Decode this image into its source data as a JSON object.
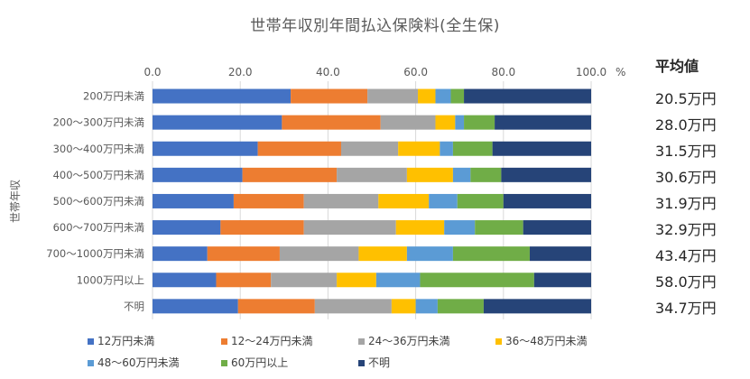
{
  "chart_data": {
    "type": "bar",
    "orientation": "horizontal",
    "stacked": true,
    "title": "世帯年収別年間払込保険料(全生保)",
    "ylabel": "世帯年収",
    "xlim": [
      0,
      100
    ],
    "x_ticks": [
      "0.0",
      "20.0",
      "40.0",
      "60.0",
      "80.0",
      "100.0"
    ],
    "x_unit": "%",
    "legend_position": "bottom",
    "grid": true,
    "categories": [
      "200万円未満",
      "200～300万円未満",
      "300～400万円未満",
      "400～500万円未満",
      "500～600万円未満",
      "600～700万円未満",
      "700～1000万円未満",
      "1000万円以上",
      "不明"
    ],
    "series": [
      {
        "name": "12万円未満",
        "color": "#4472C4",
        "values": [
          31.5,
          29.5,
          24.0,
          20.5,
          18.5,
          15.5,
          12.5,
          14.5,
          19.5
        ]
      },
      {
        "name": "12～24万円未満",
        "color": "#ED7D31",
        "values": [
          17.5,
          22.5,
          19.0,
          21.5,
          16.0,
          19.0,
          16.5,
          12.5,
          17.5
        ]
      },
      {
        "name": "24～36万円未満",
        "color": "#A5A5A5",
        "values": [
          11.5,
          12.5,
          13.0,
          16.0,
          17.0,
          21.0,
          18.0,
          15.0,
          17.5
        ]
      },
      {
        "name": "36～48万円未満",
        "color": "#FFC000",
        "values": [
          4.0,
          4.5,
          9.5,
          10.5,
          11.5,
          11.0,
          11.0,
          9.0,
          5.5
        ]
      },
      {
        "name": "48～60万円未満",
        "color": "#5B9BD5",
        "values": [
          3.5,
          2.0,
          3.0,
          4.0,
          6.5,
          7.0,
          10.5,
          10.0,
          5.0
        ]
      },
      {
        "name": "60万円以上",
        "color": "#70AD47",
        "values": [
          3.0,
          7.0,
          9.0,
          7.0,
          10.5,
          11.0,
          17.5,
          26.0,
          10.5
        ]
      },
      {
        "name": "不明",
        "color": "#264478",
        "values": [
          29.0,
          22.0,
          22.5,
          20.5,
          20.0,
          15.5,
          14.0,
          13.0,
          24.5
        ]
      }
    ],
    "side_column": {
      "header": "平均値",
      "values": [
        "20.5万円",
        "28.0万円",
        "31.5万円",
        "30.6万円",
        "31.9万円",
        "32.9万円",
        "43.4万円",
        "58.0万円",
        "34.7万円"
      ]
    }
  }
}
